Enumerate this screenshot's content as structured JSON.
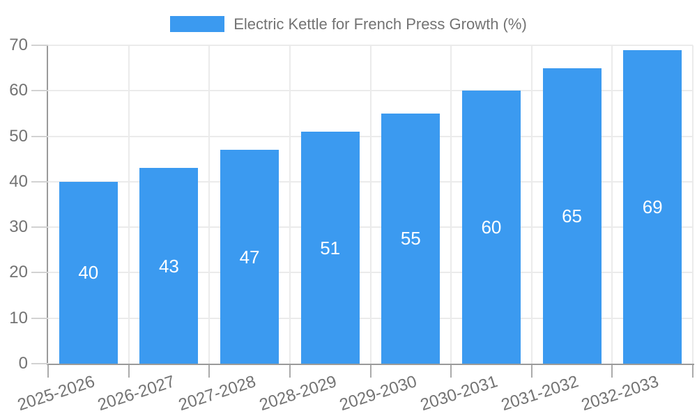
{
  "chart_data": {
    "type": "bar",
    "title": "Electric Kettle for French Press Growth (%)",
    "categories": [
      "2025-2026",
      "2026-2027",
      "2027-2028",
      "2028-2029",
      "2029-2030",
      "2030-2031",
      "2031-2032",
      "2032-2033"
    ],
    "values": [
      40,
      43,
      47,
      51,
      55,
      60,
      65,
      69
    ],
    "bar_value_labels": [
      "40",
      "43",
      "47",
      "51",
      "55",
      "60",
      "65",
      "69"
    ],
    "xlabel": "",
    "ylabel": "",
    "ylim": [
      0,
      70
    ],
    "yticks": [
      0,
      10,
      20,
      30,
      40,
      50,
      60,
      70
    ],
    "grid": true,
    "legend_position": "top",
    "colors": {
      "bar": "#3B9AF0",
      "bar_value_text": "#FFFFFF",
      "axis_text": "#737373",
      "axis_line": "#9A9A9A",
      "gridline": "#EBEBEB",
      "background": "#FFFFFF"
    }
  }
}
